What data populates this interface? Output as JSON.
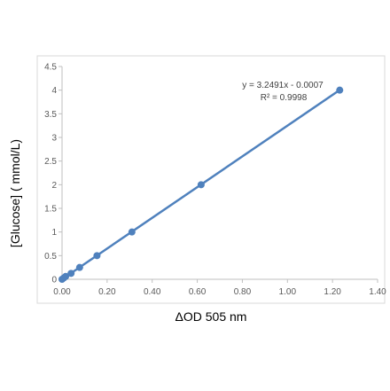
{
  "chart_data": {
    "type": "scatter",
    "xlabel": "ΔOD 505 nm",
    "ylabel": "[Glucose] ( mmol/L)",
    "xlim": [
      0,
      1.4
    ],
    "ylim": [
      0,
      4.5
    ],
    "x_ticks": [
      "0.00",
      "0.20",
      "0.40",
      "0.60",
      "0.80",
      "1.00",
      "1.20",
      "1.40"
    ],
    "y_ticks": [
      "0",
      "0.5",
      "1",
      "1.5",
      "2",
      "2.5",
      "3",
      "3.5",
      "4",
      "4.5"
    ],
    "x_tick_values": [
      0,
      0.2,
      0.4,
      0.6,
      0.8,
      1.0,
      1.2,
      1.4
    ],
    "y_tick_values": [
      0,
      0.5,
      1,
      1.5,
      2,
      2.5,
      3,
      3.5,
      4,
      4.5
    ],
    "grid": false,
    "points": [
      {
        "x": 0.0,
        "y": 0.0
      },
      {
        "x": 0.008,
        "y": 0.03
      },
      {
        "x": 0.016,
        "y": 0.06
      },
      {
        "x": 0.04,
        "y": 0.125
      },
      {
        "x": 0.078,
        "y": 0.25
      },
      {
        "x": 0.155,
        "y": 0.5
      },
      {
        "x": 0.31,
        "y": 1.0
      },
      {
        "x": 0.617,
        "y": 2.0
      },
      {
        "x": 1.232,
        "y": 4.0
      }
    ],
    "trendline": {
      "slope": 3.2491,
      "intercept": -0.0007,
      "x_range": [
        0,
        1.232
      ]
    },
    "annotations": [
      "y = 3.2491x - 0.0007",
      "R² = 0.9998"
    ],
    "series_color": "#4f81bd",
    "frame_color": "#d9d9d9",
    "axis_color": "#bfbfbf"
  }
}
